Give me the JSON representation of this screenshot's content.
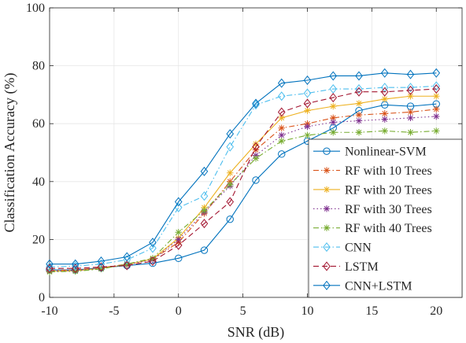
{
  "chart_data": {
    "type": "line",
    "xlabel": "SNR (dB)",
    "ylabel": "Classification Accuracy (%)",
    "xlim": [
      -10,
      22
    ],
    "ylim": [
      0,
      100
    ],
    "xticks": [
      -10,
      -5,
      0,
      5,
      10,
      15,
      20
    ],
    "yticks": [
      0,
      20,
      40,
      60,
      80,
      100
    ],
    "grid": true,
    "legend_position": "lower-right",
    "x": [
      -10,
      -8,
      -6,
      -4,
      -2,
      0,
      2,
      4,
      6,
      8,
      10,
      12,
      14,
      16,
      18,
      20
    ],
    "series": [
      {
        "name": "Nonlinear-SVM",
        "color": "#0072BD",
        "dash": "solid",
        "marker": "circle",
        "values": [
          9.5,
          9.5,
          10.2,
          11.0,
          11.8,
          13.5,
          16.3,
          27.0,
          40.5,
          49.5,
          54.0,
          58.5,
          64.5,
          66.5,
          66.0,
          66.8
        ]
      },
      {
        "name": "RF with 10 Trees",
        "color": "#D95319",
        "dash": "dashdot",
        "marker": "asterisk",
        "values": [
          9.3,
          9.5,
          10.2,
          11.5,
          13.2,
          19.0,
          29.0,
          40.0,
          51.0,
          58.5,
          60.0,
          62.0,
          63.0,
          63.5,
          64.0,
          65.0
        ]
      },
      {
        "name": "RF with 20 Trees",
        "color": "#EDB120",
        "dash": "solid",
        "marker": "asterisk",
        "values": [
          9.0,
          9.2,
          10.0,
          11.3,
          13.3,
          20.5,
          31.0,
          43.0,
          53.0,
          62.0,
          64.5,
          66.0,
          67.0,
          68.5,
          69.5,
          69.5
        ]
      },
      {
        "name": "RF with 30 Trees",
        "color": "#7E2F8E",
        "dash": "dotted",
        "marker": "asterisk",
        "values": [
          9.0,
          9.3,
          10.0,
          11.3,
          13.0,
          20.0,
          29.5,
          38.5,
          49.0,
          56.0,
          59.0,
          60.5,
          61.0,
          61.5,
          62.0,
          62.5
        ]
      },
      {
        "name": "RF with 40 Trees",
        "color": "#77AC30",
        "dash": "dashdot",
        "marker": "asterisk",
        "values": [
          8.8,
          9.0,
          9.8,
          11.5,
          13.5,
          22.5,
          30.0,
          39.0,
          48.0,
          54.0,
          56.0,
          57.0,
          57.0,
          57.5,
          57.0,
          57.5
        ]
      },
      {
        "name": "CNN",
        "color": "#4DBEEE",
        "dash": "dashdot",
        "marker": "diamond",
        "values": [
          10.5,
          10.8,
          11.5,
          13.0,
          17.0,
          31.0,
          35.0,
          52.0,
          66.5,
          69.5,
          70.5,
          72.0,
          72.0,
          72.5,
          72.5,
          73.0
        ]
      },
      {
        "name": "LSTM",
        "color": "#A2142F",
        "dash": "dashed",
        "marker": "diamond",
        "values": [
          10.0,
          10.0,
          10.5,
          11.0,
          12.5,
          18.0,
          25.5,
          33.0,
          52.0,
          64.0,
          67.0,
          69.0,
          71.0,
          71.0,
          71.5,
          72.0
        ]
      },
      {
        "name": "CNN+LSTM",
        "color": "#0072BD",
        "dash": "solid",
        "marker": "diamond",
        "values": [
          11.5,
          11.5,
          12.5,
          14.0,
          19.0,
          33.0,
          43.5,
          56.5,
          67.0,
          74.0,
          75.0,
          76.5,
          76.5,
          77.5,
          77.0,
          77.5
        ]
      }
    ]
  }
}
